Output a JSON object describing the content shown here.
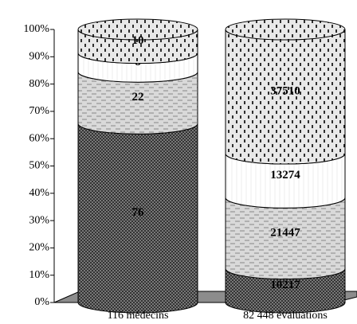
{
  "chart_data": {
    "type": "stacked-cylinder-100",
    "categories": [
      "116 médecins",
      "82 448 évaluations"
    ],
    "series": [
      {
        "color": "#6e6e6e",
        "values": [
          76,
          10217
        ]
      },
      {
        "color": "#d9d9d9",
        "values": [
          22,
          21447
        ]
      },
      {
        "color": "#ffffff",
        "values": [
          8,
          13274
        ]
      },
      {
        "color": "#e8e8e8",
        "values": [
          10,
          37510
        ]
      }
    ],
    "ylim": [
      0,
      100
    ],
    "yticks": [
      {
        "value": 0,
        "label": "0%"
      },
      {
        "value": 10,
        "label": "10%"
      },
      {
        "value": 20,
        "label": "20%"
      },
      {
        "value": 30,
        "label": "30%"
      },
      {
        "value": 40,
        "label": "40%"
      },
      {
        "value": 50,
        "label": "50%"
      },
      {
        "value": 60,
        "label": "60%"
      },
      {
        "value": 70,
        "label": "70%"
      },
      {
        "value": 80,
        "label": "80%"
      },
      {
        "value": 90,
        "label": "90%"
      },
      {
        "value": 100,
        "label": "100%"
      }
    ]
  }
}
